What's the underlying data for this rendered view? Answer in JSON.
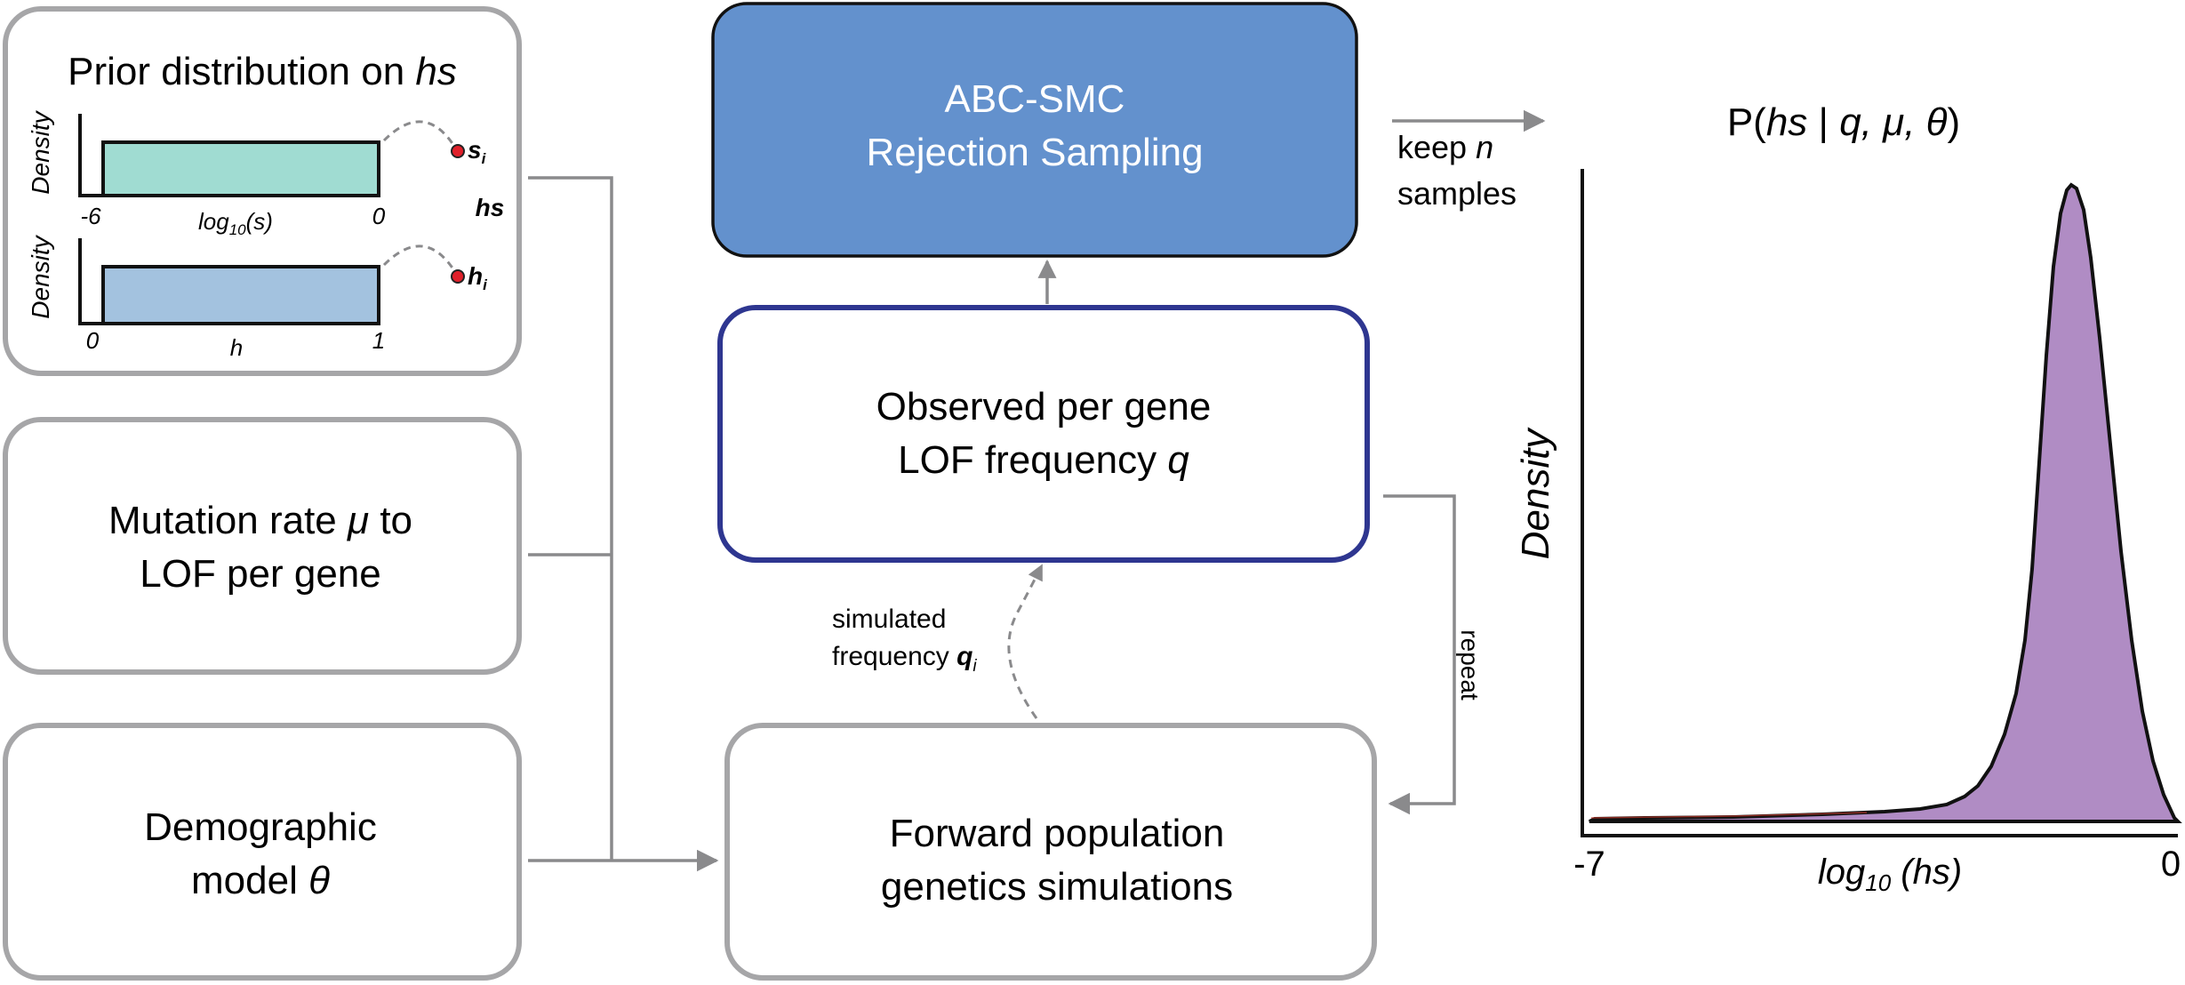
{
  "prior": {
    "title_prefix": "Prior distribution on ",
    "title_var": "hs",
    "panel_s": {
      "ylabel": "Density",
      "xmin": "-6",
      "xmax": "0",
      "xlabel_base": "log",
      "xlabel_sub": "10",
      "xlabel_arg": "(s)",
      "sample": "s",
      "sample_sub": "i"
    },
    "panel_h": {
      "ylabel": "Density",
      "xmin": "0",
      "xmax": "1",
      "xlabel": "h",
      "sample": "h",
      "sample_sub": "i"
    },
    "hs_label": "hs"
  },
  "mutation": {
    "line1_prefix": "Mutation rate ",
    "line1_var": "μ",
    "line1_suffix": " to",
    "line2": "LOF per gene"
  },
  "demographic": {
    "line1": "Demographic",
    "line2_prefix": "model ",
    "line2_var": "θ"
  },
  "abc": {
    "line1": "ABC-SMC",
    "line2": "Rejection Sampling"
  },
  "observed": {
    "line1": "Observed per gene",
    "line2_prefix": "LOF frequency ",
    "line2_var": "q"
  },
  "forward": {
    "line1": "Forward population",
    "line2": "genetics simulations"
  },
  "simulated": {
    "line1": "simulated",
    "line2_prefix": "frequency ",
    "line2_var": "q",
    "line2_sub": "i"
  },
  "repeat_label": "repeat",
  "keep": {
    "line1_prefix": "keep ",
    "line1_var": "n",
    "line2": "samples"
  },
  "posterior": {
    "title_pre": "P(",
    "title_var1": "hs",
    "title_mid": " | ",
    "title_var2": "q, μ, θ",
    "title_post": ")",
    "ylabel": "Density",
    "xmin": "-7",
    "xmax": "0",
    "xlabel_base": "log",
    "xlabel_sub": "10",
    "xlabel_arg": " (hs)"
  },
  "colors": {
    "prior_s_fill": "#a0dcd2",
    "prior_h_fill": "#a3c2df",
    "abc_fill": "#6391cd",
    "observed_border": "#2e3690",
    "box_border": "#a6a6a8",
    "posterior_fill": "#b08cc4",
    "sample_dot": "#e0202a"
  }
}
